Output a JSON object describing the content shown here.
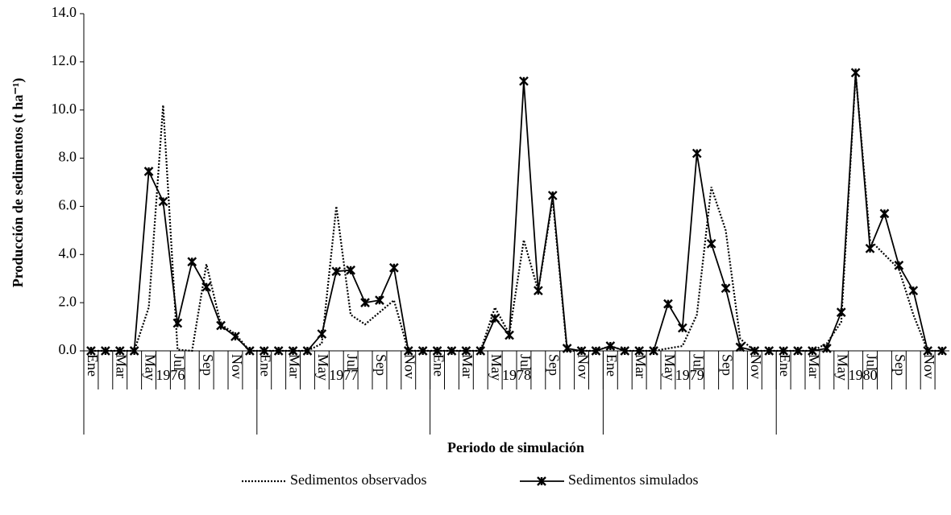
{
  "chart_data": {
    "type": "line",
    "ylabel": "Producción de sedimentos  (t ha⁻¹)",
    "xlabel": "Periodo de simulación",
    "categories": [
      "Ene",
      null,
      "Mar",
      null,
      "May",
      null,
      "Jul",
      null,
      "Sep",
      null,
      "Nov",
      null,
      "Ene",
      null,
      "Mar",
      null,
      "May",
      null,
      "Jul",
      null,
      "Sep",
      null,
      "Nov",
      null,
      "Ene",
      null,
      "Mar",
      null,
      "May",
      null,
      "Jul",
      null,
      "Sep",
      null,
      "Nov",
      null,
      "Ene",
      null,
      "Mar",
      null,
      "May",
      null,
      "Jul",
      null,
      "Sep",
      null,
      "Nov",
      null,
      "Ene",
      null,
      "Mar",
      null,
      "May",
      null,
      "Jul",
      null,
      "Sep",
      null,
      "Nov",
      null
    ],
    "groups": [
      "1976",
      "1977",
      "1978",
      "1979",
      "1980"
    ],
    "series": [
      {
        "name": "Sedimentos observados",
        "color": "#000000",
        "dash": "dotted",
        "marker": "none",
        "values": [
          0,
          0,
          0,
          0,
          1.8,
          10.2,
          0.05,
          0,
          3.6,
          1.1,
          0.7,
          0,
          0,
          0,
          0,
          0,
          0.3,
          6.0,
          1.5,
          1.1,
          1.6,
          2.1,
          0,
          0,
          0,
          0,
          0,
          0,
          1.8,
          0.7,
          4.6,
          2.5,
          6.3,
          0,
          0,
          0,
          0.2,
          0,
          0,
          0,
          0.1,
          0.2,
          1.5,
          6.8,
          5.0,
          0.5,
          0,
          0,
          0,
          0,
          0,
          0.3,
          1.2,
          11.5,
          4.6,
          4.0,
          3.4,
          1.5,
          0,
          0
        ]
      },
      {
        "name": "Sedimentos simulados",
        "color": "#000000",
        "dash": "solid",
        "marker": "star",
        "values": [
          0,
          0,
          0,
          0,
          7.45,
          6.2,
          1.15,
          3.7,
          2.65,
          1.05,
          0.6,
          0,
          0,
          0,
          0,
          0,
          0.7,
          3.3,
          3.35,
          2.0,
          2.1,
          3.45,
          0,
          0,
          0,
          0,
          0,
          0,
          1.35,
          0.65,
          11.2,
          2.5,
          6.45,
          0.1,
          0,
          0,
          0.2,
          0,
          0,
          0,
          1.95,
          0.95,
          8.2,
          4.45,
          2.6,
          0.15,
          0,
          0,
          0,
          0,
          0,
          0.1,
          1.6,
          11.55,
          4.25,
          5.7,
          3.55,
          2.5,
          0,
          0
        ]
      }
    ],
    "ylim": [
      0,
      14
    ],
    "yticks": [
      {
        "value": 0,
        "label": "0.0"
      },
      {
        "value": 2,
        "label": "2.0"
      },
      {
        "value": 4,
        "label": "4.0"
      },
      {
        "value": 6,
        "label": "6.0"
      },
      {
        "value": 8,
        "label": "8.0"
      },
      {
        "value": 10,
        "label": "10.0"
      },
      {
        "value": 12,
        "label": "12.0"
      },
      {
        "value": 14,
        "label": "14.0"
      }
    ],
    "grid": false,
    "legend": "bottom"
  }
}
